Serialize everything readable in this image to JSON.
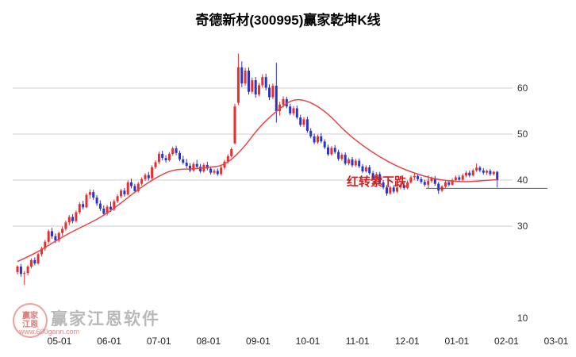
{
  "title": "奇德新材(300995)赢家乾坤K线",
  "watermark": {
    "seal_line1": "赢家",
    "seal_line2": "江恩",
    "brand": "赢家江恩软件",
    "url": "www.600gann.com"
  },
  "chart_data": {
    "type": "candlestick",
    "title": "奇德新材(300995)赢家乾坤K线",
    "x_ticks": [
      "05-01",
      "06-01",
      "07-01",
      "08-01",
      "09-01",
      "10-01",
      "11-01",
      "12-01",
      "01-01",
      "02-01",
      "03-01"
    ],
    "y_ticks": [
      60,
      50,
      40,
      30,
      10
    ],
    "grid_values": [
      60,
      50,
      40,
      30
    ],
    "ylim": [
      10,
      70
    ],
    "annotation": {
      "text": "红转紫下跌",
      "color": "#cc2222",
      "price": 41.5
    },
    "level_line": {
      "price": 38.2
    },
    "colors": {
      "up": "#e82e2e",
      "down": "#2a35c8",
      "ma": "#e84545",
      "grid": "#cfcfcf"
    },
    "ma_sample_step": 5,
    "ma_values": [
      22.3,
      24.0,
      26.3,
      28.5,
      30.3,
      32.3,
      35.0,
      38.0,
      40.5,
      42.3,
      42.4,
      42.7,
      43.2,
      46.5,
      51.5,
      55.0,
      57.8,
      57.0,
      54.5,
      50.5,
      47.5,
      45.0,
      43.0,
      41.5,
      40.4,
      39.8,
      39.6,
      39.9,
      40.1
    ],
    "candles": [
      [
        20.0,
        21.5,
        19.5,
        21.2
      ],
      [
        21.2,
        21.8,
        19.0,
        19.6
      ],
      [
        19.6,
        20.2,
        17.2,
        19.8
      ],
      [
        19.8,
        21.5,
        19.3,
        21.2
      ],
      [
        21.2,
        23.0,
        20.8,
        22.6
      ],
      [
        22.6,
        23.2,
        21.5,
        21.9
      ],
      [
        21.9,
        24.2,
        21.6,
        23.9
      ],
      [
        23.9,
        25.5,
        23.4,
        25.1
      ],
      [
        25.1,
        27.0,
        24.6,
        26.6
      ],
      [
        26.6,
        29.3,
        26.2,
        28.9
      ],
      [
        28.9,
        29.6,
        27.3,
        27.8
      ],
      [
        27.8,
        28.4,
        26.3,
        26.9
      ],
      [
        26.9,
        28.8,
        26.5,
        28.5
      ],
      [
        28.5,
        29.9,
        27.9,
        29.4
      ],
      [
        29.4,
        31.2,
        29.0,
        30.8
      ],
      [
        30.8,
        32.4,
        30.2,
        32.0
      ],
      [
        32.0,
        32.6,
        30.6,
        31.1
      ],
      [
        31.1,
        33.4,
        30.8,
        33.0
      ],
      [
        33.0,
        35.2,
        32.6,
        34.8
      ],
      [
        34.8,
        35.5,
        33.6,
        34.1
      ],
      [
        34.1,
        37.2,
        33.9,
        36.8
      ],
      [
        36.8,
        38.0,
        35.9,
        37.4
      ],
      [
        37.4,
        37.9,
        35.7,
        36.2
      ],
      [
        36.2,
        36.7,
        34.4,
        34.9
      ],
      [
        34.9,
        35.6,
        33.3,
        33.8
      ],
      [
        33.8,
        34.5,
        32.2,
        32.7
      ],
      [
        32.7,
        34.6,
        32.3,
        34.2
      ],
      [
        34.2,
        35.3,
        33.1,
        33.6
      ],
      [
        33.6,
        35.8,
        33.3,
        35.4
      ],
      [
        35.4,
        36.9,
        35.0,
        36.5
      ],
      [
        36.5,
        38.1,
        36.1,
        37.7
      ],
      [
        37.7,
        38.3,
        36.4,
        36.9
      ],
      [
        36.9,
        39.9,
        36.6,
        39.5
      ],
      [
        39.5,
        40.3,
        38.2,
        38.7
      ],
      [
        38.7,
        39.2,
        37.2,
        37.6
      ],
      [
        37.6,
        39.6,
        37.3,
        39.2
      ],
      [
        39.2,
        40.6,
        38.8,
        40.2
      ],
      [
        40.2,
        41.5,
        39.8,
        41.1
      ],
      [
        41.1,
        41.8,
        39.9,
        40.4
      ],
      [
        40.4,
        43.2,
        40.1,
        42.8
      ],
      [
        42.8,
        44.3,
        42.4,
        43.9
      ],
      [
        43.9,
        46.2,
        43.5,
        45.7
      ],
      [
        45.7,
        46.4,
        44.3,
        44.8
      ],
      [
        44.8,
        45.4,
        43.8,
        44.3
      ],
      [
        44.3,
        46.1,
        44.0,
        45.7
      ],
      [
        45.7,
        47.3,
        45.3,
        46.9
      ],
      [
        46.9,
        47.5,
        45.4,
        45.9
      ],
      [
        45.9,
        46.4,
        44.1,
        44.5
      ],
      [
        44.5,
        45.3,
        43.4,
        43.8
      ],
      [
        43.8,
        44.6,
        42.6,
        43.1
      ],
      [
        43.1,
        43.7,
        41.7,
        42.1
      ],
      [
        42.1,
        43.9,
        41.8,
        43.5
      ],
      [
        43.5,
        44.4,
        42.4,
        42.9
      ],
      [
        42.9,
        43.5,
        41.5,
        41.9
      ],
      [
        41.9,
        43.7,
        41.6,
        43.3
      ],
      [
        43.3,
        44.0,
        42.1,
        42.5
      ],
      [
        42.5,
        43.0,
        41.2,
        41.6
      ],
      [
        41.6,
        42.4,
        41.2,
        42.0
      ],
      [
        42.0,
        42.5,
        40.9,
        41.3
      ],
      [
        41.3,
        43.1,
        41.0,
        42.7
      ],
      [
        42.7,
        44.4,
        42.3,
        44.0
      ],
      [
        44.0,
        45.6,
        43.6,
        45.2
      ],
      [
        45.2,
        47.1,
        44.9,
        46.7
      ],
      [
        48.0,
        56.6,
        47.7,
        56.0
      ],
      [
        56.8,
        67.5,
        56.3,
        64.5
      ],
      [
        64.5,
        65.8,
        60.2,
        61.0
      ],
      [
        61.0,
        64.4,
        60.5,
        63.8
      ],
      [
        63.8,
        64.5,
        58.6,
        59.2
      ],
      [
        59.2,
        62.3,
        58.8,
        61.7
      ],
      [
        61.7,
        62.4,
        57.9,
        58.6
      ],
      [
        58.6,
        61.1,
        58.2,
        60.6
      ],
      [
        60.6,
        63.0,
        60.1,
        62.4
      ],
      [
        62.4,
        63.1,
        59.5,
        60.1
      ],
      [
        60.1,
        60.8,
        57.4,
        58.0
      ],
      [
        58.0,
        61.0,
        57.6,
        60.5
      ],
      [
        60.5,
        65.5,
        52.5,
        55.0
      ],
      [
        55.0,
        57.0,
        54.0,
        56.4
      ],
      [
        56.4,
        58.2,
        55.8,
        57.6
      ],
      [
        57.6,
        58.1,
        55.6,
        56.0
      ],
      [
        56.0,
        56.6,
        54.1,
        54.5
      ],
      [
        54.5,
        56.1,
        54.0,
        55.6
      ],
      [
        55.6,
        56.2,
        53.2,
        53.6
      ],
      [
        53.6,
        54.2,
        51.6,
        52.0
      ],
      [
        52.0,
        53.7,
        51.5,
        53.2
      ],
      [
        53.2,
        53.8,
        50.3,
        50.7
      ],
      [
        50.7,
        51.3,
        49.1,
        49.5
      ],
      [
        49.5,
        50.1,
        47.8,
        48.2
      ],
      [
        48.2,
        49.9,
        47.9,
        49.5
      ],
      [
        49.5,
        50.2,
        48.0,
        48.4
      ],
      [
        48.4,
        48.9,
        46.7,
        47.1
      ],
      [
        47.1,
        47.7,
        45.2,
        45.6
      ],
      [
        45.6,
        47.4,
        45.3,
        47.0
      ],
      [
        47.0,
        47.6,
        45.7,
        46.1
      ],
      [
        46.1,
        46.6,
        44.2,
        44.6
      ],
      [
        44.6,
        45.9,
        44.2,
        45.5
      ],
      [
        45.5,
        46.0,
        43.2,
        43.6
      ],
      [
        43.6,
        44.9,
        43.2,
        44.5
      ],
      [
        44.5,
        45.0,
        42.8,
        43.2
      ],
      [
        43.2,
        44.6,
        42.9,
        44.2
      ],
      [
        44.2,
        44.7,
        42.6,
        43.0
      ],
      [
        43.0,
        43.5,
        41.5,
        41.9
      ],
      [
        41.9,
        43.2,
        41.6,
        42.8
      ],
      [
        42.8,
        43.3,
        41.1,
        41.5
      ],
      [
        41.5,
        42.0,
        40.0,
        40.4
      ],
      [
        40.4,
        41.7,
        40.1,
        41.3
      ],
      [
        41.3,
        41.8,
        39.1,
        39.5
      ],
      [
        39.5,
        40.0,
        38.0,
        38.4
      ],
      [
        38.4,
        38.9,
        36.6,
        37.1
      ],
      [
        37.1,
        38.8,
        36.8,
        38.4
      ],
      [
        38.4,
        38.9,
        37.1,
        37.5
      ],
      [
        37.5,
        38.8,
        37.2,
        38.4
      ],
      [
        38.4,
        39.4,
        38.0,
        39.0
      ],
      [
        39.0,
        39.5,
        37.9,
        38.3
      ],
      [
        38.3,
        39.9,
        38.0,
        39.5
      ],
      [
        39.5,
        41.0,
        39.2,
        40.6
      ],
      [
        40.6,
        41.5,
        40.0,
        40.9
      ],
      [
        40.9,
        41.3,
        39.8,
        40.2
      ],
      [
        40.2,
        40.7,
        39.2,
        39.6
      ],
      [
        39.6,
        40.1,
        38.6,
        39.0
      ],
      [
        39.0,
        40.2,
        38.7,
        39.8
      ],
      [
        39.8,
        40.8,
        39.4,
        40.4
      ],
      [
        40.4,
        40.9,
        38.8,
        39.2
      ],
      [
        39.2,
        39.6,
        37.0,
        37.7
      ],
      [
        37.7,
        38.9,
        37.4,
        38.6
      ],
      [
        38.6,
        39.9,
        38.3,
        39.5
      ],
      [
        39.5,
        40.0,
        38.6,
        39.0
      ],
      [
        39.0,
        40.4,
        38.8,
        40.0
      ],
      [
        40.0,
        41.0,
        39.6,
        40.6
      ],
      [
        40.6,
        41.1,
        39.7,
        40.1
      ],
      [
        40.1,
        41.4,
        39.8,
        41.0
      ],
      [
        41.0,
        42.0,
        40.6,
        41.6
      ],
      [
        41.6,
        42.1,
        40.6,
        41.0
      ],
      [
        41.0,
        42.5,
        40.8,
        42.1
      ],
      [
        42.1,
        43.6,
        41.8,
        42.7
      ],
      [
        42.7,
        43.1,
        41.7,
        42.1
      ],
      [
        42.1,
        42.6,
        41.2,
        41.6
      ],
      [
        41.6,
        42.3,
        41.1,
        42.0
      ],
      [
        42.0,
        42.4,
        40.9,
        41.3
      ],
      [
        41.3,
        42.0,
        41.0,
        41.8
      ],
      [
        41.8,
        42.0,
        38.4,
        40.0
      ]
    ]
  }
}
